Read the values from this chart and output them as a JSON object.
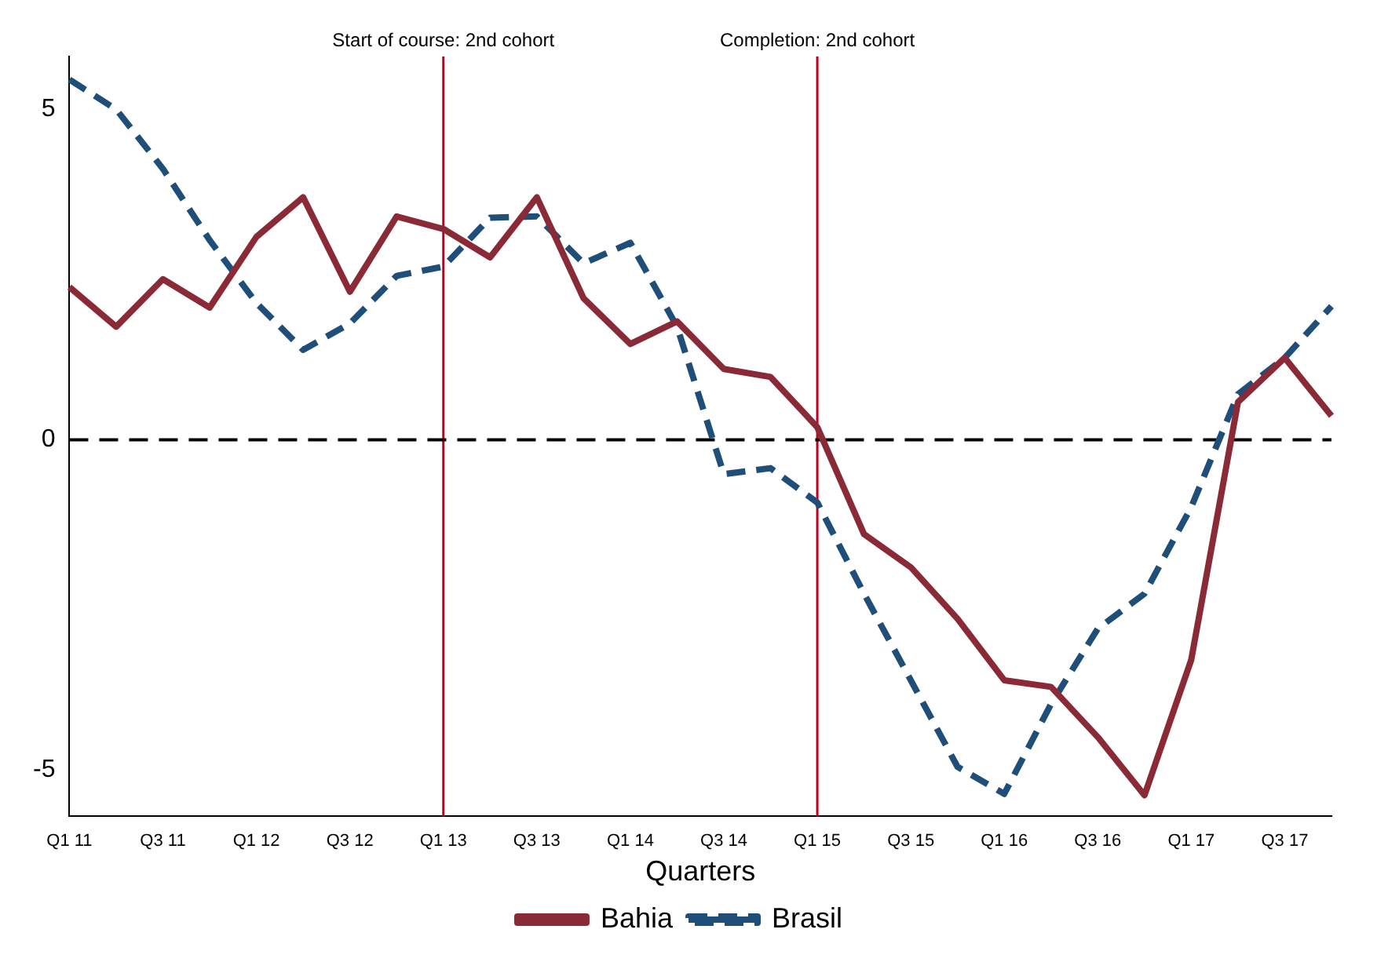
{
  "chart_data": {
    "type": "line",
    "xlabel": "Quarters",
    "categories": [
      "Q1 11",
      null,
      "Q3 11",
      null,
      "Q1 12",
      null,
      "Q3 12",
      null,
      "Q1 13",
      null,
      "Q3 13",
      null,
      "Q1 14",
      null,
      "Q3 14",
      null,
      "Q1 15",
      null,
      "Q3 15",
      null,
      "Q1 16",
      null,
      "Q3 16",
      null,
      "Q1 17",
      null,
      "Q3 17",
      null
    ],
    "series": [
      {
        "name": "Bahia",
        "color": "#8b2a37",
        "line_style": "solid",
        "values": [
          2.31,
          1.71,
          2.43,
          2.0,
          3.07,
          3.67,
          2.24,
          3.38,
          3.19,
          2.76,
          3.67,
          2.14,
          1.45,
          1.79,
          1.07,
          0.95,
          0.19,
          -1.43,
          -1.93,
          -2.71,
          -3.64,
          -3.74,
          -4.5,
          -5.38,
          -3.33,
          0.57,
          1.24,
          0.36
        ]
      },
      {
        "name": "Brasil",
        "color": "#1f4e79",
        "line_style": "dashed",
        "values": [
          5.45,
          5.0,
          4.1,
          3.02,
          2.07,
          1.36,
          1.76,
          2.48,
          2.62,
          3.36,
          3.38,
          2.67,
          2.98,
          1.71,
          -0.52,
          -0.43,
          -0.95,
          -2.33,
          -3.64,
          -4.95,
          -5.36,
          -4.0,
          -2.86,
          -2.33,
          -1.02,
          0.69,
          1.24,
          2.02
        ]
      }
    ],
    "ylim": [
      -5.7,
      5.8
    ],
    "yticks": [
      -5,
      0,
      5
    ],
    "grid": false,
    "legend": "bottom",
    "marker": "none",
    "ref_lines": [
      {
        "axis": "x",
        "value": "Q1 13",
        "label": "Start of course: 2nd cohort",
        "color": "#c00020",
        "line_style": "solid"
      },
      {
        "axis": "x",
        "value": "Q1 15",
        "label": "Completion: 2nd cohort",
        "color": "#c00020",
        "line_style": "solid"
      },
      {
        "axis": "y",
        "value": 0,
        "color": "#000000",
        "line_style": "dashed"
      }
    ]
  }
}
